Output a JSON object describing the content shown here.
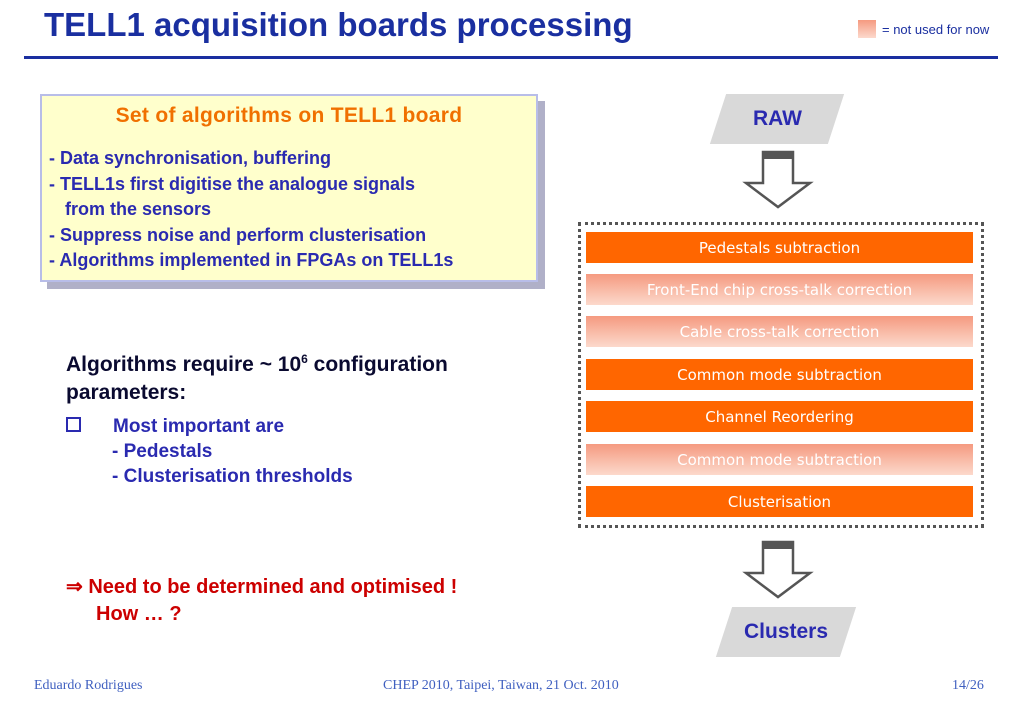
{
  "title": "TELL1 acquisition boards processing",
  "legend": {
    "label": "= not used for now",
    "color": "#f59a80"
  },
  "algorithms_box": {
    "heading": "Set of algorithms on TELL1 board",
    "lines": [
      "- Data synchronisation, buffering",
      "- TELL1s first digitise the analogue signals",
      "   from the sensors",
      "- Suppress noise and perform clusterisation",
      "- Algorithms implemented in FPGAs on TELL1s"
    ]
  },
  "config": {
    "line1a": "Algorithms require ~ 10",
    "line1sup": "6",
    "line1b": " configuration",
    "line2": "parameters:"
  },
  "bullets": {
    "main": "Most important are",
    "subs": [
      "- Pedestals",
      "- Clusterisation thresholds"
    ]
  },
  "conclusion": {
    "line1": "⇒ Need to be determined and optimised !",
    "line2": "How … ?"
  },
  "flow": {
    "input": "RAW",
    "output": "Clusters",
    "steps": [
      {
        "label": "Pedestals subtraction",
        "used": true
      },
      {
        "label": "Front-End chip cross-talk correction",
        "used": false
      },
      {
        "label": "Cable cross-talk correction",
        "used": false
      },
      {
        "label": "Common mode subtraction",
        "used": true
      },
      {
        "label": "Channel Reordering",
        "used": true
      },
      {
        "label": "Common mode subtraction",
        "used": false
      },
      {
        "label": "Clusterisation",
        "used": true
      }
    ],
    "colors": {
      "used": "#ff6600",
      "unused": "#f59a80"
    }
  },
  "footer": {
    "author": "Eduardo Rodrigues",
    "event": "CHEP 2010, Taipei, Taiwan, 21 Oct. 2010",
    "page": "14/26"
  }
}
